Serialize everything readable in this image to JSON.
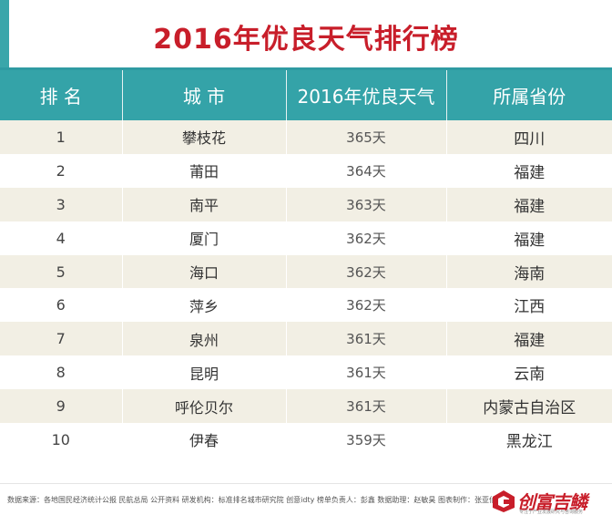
{
  "title": "2016年优良天气排行榜",
  "table": {
    "headers": [
      "排 名",
      "城 市",
      "2016年优良天气",
      "所属省份"
    ],
    "rows": [
      {
        "rank": "1",
        "city": "攀枝花",
        "days": "365天",
        "province": "四川"
      },
      {
        "rank": "2",
        "city": "莆田",
        "days": "364天",
        "province": "福建"
      },
      {
        "rank": "3",
        "city": "南平",
        "days": "363天",
        "province": "福建"
      },
      {
        "rank": "4",
        "city": "厦门",
        "days": "362天",
        "province": "福建"
      },
      {
        "rank": "5",
        "city": "海口",
        "days": "362天",
        "province": "海南"
      },
      {
        "rank": "6",
        "city": "萍乡",
        "days": "362天",
        "province": "江西"
      },
      {
        "rank": "7",
        "city": "泉州",
        "days": "361天",
        "province": "福建"
      },
      {
        "rank": "8",
        "city": "昆明",
        "days": "361天",
        "province": "云南"
      },
      {
        "rank": "9",
        "city": "呼伦贝尔",
        "days": "361天",
        "province": "内蒙古自治区"
      },
      {
        "rank": "10",
        "city": "伊春",
        "days": "359天",
        "province": "黑龙江"
      }
    ]
  },
  "footer": {
    "source": "数据来源：各地国民经济统计公报 民航总局 公开资料  研发机构：标准排名城市研究院 创意idty  榜单负责人：彭鑫  数据助理：赵敏昊  图表制作：张亚仙",
    "logo_text": "创富吉鳞",
    "logo_sub": "专注于产业发展研究与咨询服务"
  },
  "colors": {
    "header_bg": "#34a3a8",
    "title_red": "#c81e2a",
    "row_stripe": "#f2efe4"
  }
}
